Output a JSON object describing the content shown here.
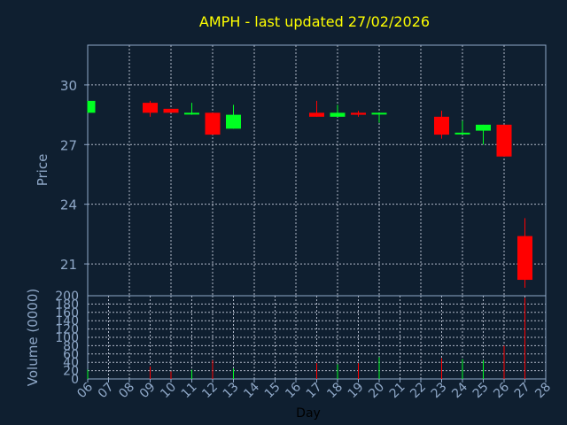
{
  "chart_data": {
    "type": "candlestick",
    "title": "AMPH - last updated 27/02/2026",
    "xlabel": "Day",
    "ylabel": "Price",
    "volume_label": "Volume (0000)",
    "grid": true,
    "colors": {
      "background": "#0f1f30",
      "title": "#ffff00",
      "axis_text": "#8fa8c8",
      "axis_line": "#8fa8c8",
      "grid": "#b0b8c8",
      "up": "#00ff22",
      "down": "#ff0000",
      "xlabel": "#000000"
    },
    "x_ticks": [
      "06",
      "07",
      "08",
      "09",
      "10",
      "11",
      "12",
      "13",
      "14",
      "15",
      "16",
      "17",
      "18",
      "19",
      "20",
      "21",
      "22",
      "23",
      "24",
      "25",
      "26",
      "27",
      "28"
    ],
    "price_axis": {
      "ylim": [
        19.4,
        32.0
      ],
      "ticks": [
        21,
        24,
        27,
        30
      ]
    },
    "volume_axis": {
      "ylim": [
        0,
        200
      ],
      "ticks": [
        0,
        20,
        40,
        60,
        80,
        100,
        120,
        140,
        160,
        180,
        200
      ]
    },
    "candles": [
      {
        "day": "06",
        "open": 28.6,
        "high": 29.2,
        "low": 28.6,
        "close": 29.2,
        "volume": 22
      },
      {
        "day": "09",
        "open": 29.1,
        "high": 29.2,
        "low": 28.4,
        "close": 28.6,
        "volume": 30
      },
      {
        "day": "10",
        "open": 28.8,
        "high": 28.8,
        "low": 28.6,
        "close": 28.6,
        "volume": 18
      },
      {
        "day": "11",
        "open": 28.6,
        "high": 29.1,
        "low": 28.5,
        "close": 28.6,
        "volume": 22
      },
      {
        "day": "12",
        "open": 28.6,
        "high": 28.6,
        "low": 27.5,
        "close": 27.5,
        "volume": 45
      },
      {
        "day": "13",
        "open": 27.8,
        "high": 29.0,
        "low": 27.8,
        "close": 28.5,
        "volume": 25
      },
      {
        "day": "17",
        "open": 28.6,
        "high": 29.2,
        "low": 28.4,
        "close": 28.4,
        "volume": 38
      },
      {
        "day": "18",
        "open": 28.4,
        "high": 29.0,
        "low": 28.4,
        "close": 28.6,
        "volume": 35
      },
      {
        "day": "19",
        "open": 28.6,
        "high": 28.7,
        "low": 28.4,
        "close": 28.5,
        "volume": 38
      },
      {
        "day": "20",
        "open": 28.6,
        "high": 28.6,
        "low": 28.1,
        "close": 28.6,
        "volume": 52
      },
      {
        "day": "23",
        "open": 28.4,
        "high": 28.7,
        "low": 27.3,
        "close": 27.5,
        "volume": 50
      },
      {
        "day": "24",
        "open": 27.6,
        "high": 28.2,
        "low": 27.6,
        "close": 27.6,
        "volume": 48
      },
      {
        "day": "25",
        "open": 27.7,
        "high": 28.0,
        "low": 27.0,
        "close": 28.0,
        "volume": 45
      },
      {
        "day": "26",
        "open": 28.0,
        "high": 28.0,
        "low": 26.4,
        "close": 26.4,
        "volume": 80
      },
      {
        "day": "27",
        "open": 22.4,
        "high": 23.3,
        "low": 19.8,
        "close": 20.2,
        "volume": 195
      }
    ]
  }
}
